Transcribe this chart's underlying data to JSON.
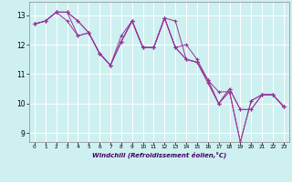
{
  "xlabel": "Windchill (Refroidissement éolien,°C)",
  "background_color": "#cff0f0",
  "line_color": "#993399",
  "grid_color": "#ffffff",
  "x_ticks": [
    0,
    1,
    2,
    3,
    4,
    5,
    6,
    7,
    8,
    9,
    10,
    11,
    12,
    13,
    14,
    15,
    16,
    17,
    18,
    19,
    20,
    21,
    22,
    23
  ],
  "y_ticks": [
    9,
    10,
    11,
    12,
    13
  ],
  "ylim": [
    8.7,
    13.45
  ],
  "xlim": [
    -0.5,
    23.5
  ],
  "series": [
    [
      12.7,
      12.8,
      13.1,
      13.1,
      12.8,
      12.4,
      11.7,
      11.3,
      12.1,
      12.8,
      11.9,
      11.9,
      12.9,
      11.9,
      12.0,
      11.5,
      10.8,
      10.0,
      10.5,
      9.8,
      9.8,
      10.3,
      10.3,
      9.9
    ],
    [
      12.7,
      12.8,
      13.1,
      13.1,
      12.8,
      12.4,
      11.7,
      11.3,
      12.1,
      12.8,
      11.9,
      11.9,
      12.9,
      11.9,
      11.5,
      11.4,
      10.7,
      10.0,
      10.5,
      9.8,
      9.8,
      10.3,
      10.3,
      9.9
    ],
    [
      12.7,
      12.8,
      13.1,
      13.1,
      12.3,
      12.4,
      11.7,
      11.3,
      12.1,
      12.8,
      11.9,
      11.9,
      12.9,
      11.9,
      11.5,
      11.4,
      10.8,
      10.0,
      10.4,
      8.7,
      10.1,
      10.3,
      10.3,
      9.9
    ],
    [
      12.7,
      12.8,
      13.1,
      12.8,
      12.3,
      12.4,
      11.7,
      11.3,
      12.3,
      12.8,
      11.9,
      11.9,
      12.9,
      12.8,
      11.5,
      11.4,
      10.8,
      10.4,
      10.4,
      8.7,
      10.1,
      10.3,
      10.3,
      9.9
    ]
  ]
}
